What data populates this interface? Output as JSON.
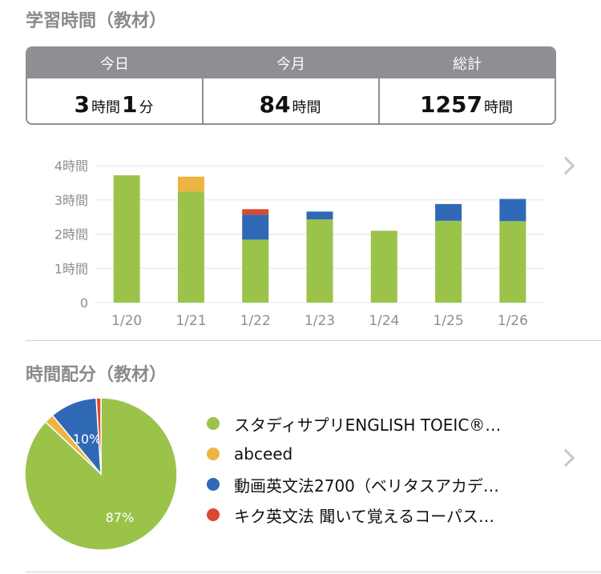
{
  "header": {
    "title": "学習時間（教材）"
  },
  "summary": {
    "today": {
      "label": "今日",
      "hours": "3",
      "hours_unit": "時間",
      "minutes": "1",
      "minutes_unit": "分"
    },
    "month": {
      "label": "今月",
      "hours": "84",
      "hours_unit": "時間"
    },
    "total": {
      "label": "総計",
      "hours": "1257",
      "hours_unit": "時間"
    }
  },
  "chart_data": [
    {
      "type": "bar",
      "stacked": true,
      "categories": [
        "1/20",
        "1/21",
        "1/22",
        "1/23",
        "1/24",
        "1/25",
        "1/26"
      ],
      "y_tick_labels": [
        "0",
        "1時間",
        "2時間",
        "3時間",
        "4時間"
      ],
      "ylim": [
        0,
        4
      ],
      "grid": true,
      "series": [
        {
          "color": "#9bc34a",
          "values": [
            3.72,
            3.25,
            1.84,
            2.43,
            2.1,
            2.39,
            2.38
          ]
        },
        {
          "color": "#eeb441",
          "values": [
            0,
            0.43,
            0,
            0,
            0,
            0,
            0
          ]
        },
        {
          "color": "#2f69b6",
          "values": [
            0,
            0,
            0.73,
            0.23,
            0,
            0.49,
            0.65
          ]
        },
        {
          "color": "#d84a32",
          "values": [
            0,
            0,
            0.16,
            0,
            0,
            0,
            0
          ]
        }
      ]
    },
    {
      "type": "pie",
      "slices": [
        {
          "label": "スタディサプリENGLISH TOEIC®…",
          "value": 87,
          "color": "#9bc34a",
          "display": "87%"
        },
        {
          "label": "abceed",
          "value": 2,
          "color": "#eeb441",
          "display": ""
        },
        {
          "label": "動画英文法2700（ベリタスアカデ…",
          "value": 10,
          "color": "#2f69b6",
          "display": "10%"
        },
        {
          "label": "キク英文法 聞いて覚えるコーパス…",
          "value": 1,
          "color": "#d84a32",
          "display": ""
        }
      ]
    }
  ],
  "distribution": {
    "title": "時間配分（教材）"
  }
}
